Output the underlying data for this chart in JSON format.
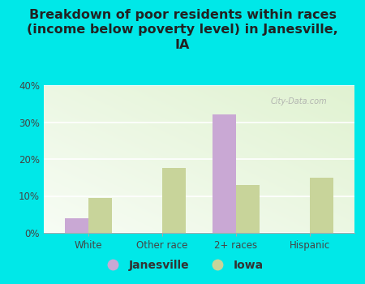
{
  "title": "Breakdown of poor residents within races\n(income below poverty level) in Janesville,\nIA",
  "categories": [
    "White",
    "Other race",
    "2+ races",
    "Hispanic"
  ],
  "janesville_values": [
    4,
    0,
    32,
    0
  ],
  "iowa_values": [
    9.5,
    17.5,
    13,
    15
  ],
  "janesville_color": "#c9a8d4",
  "iowa_color": "#c8d49a",
  "background_color": "#00e8e8",
  "ylim": [
    0,
    40
  ],
  "yticks": [
    0,
    10,
    20,
    30,
    40
  ],
  "ytick_labels": [
    "0%",
    "10%",
    "20%",
    "30%",
    "40%"
  ],
  "bar_width": 0.32,
  "legend_janesville": "Janesville",
  "legend_iowa": "Iowa",
  "title_fontsize": 11.5,
  "watermark": "City-Data.com"
}
